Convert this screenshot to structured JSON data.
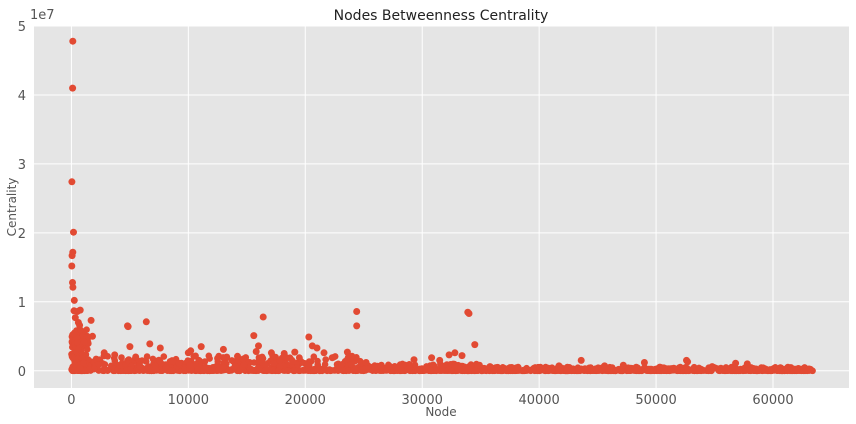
{
  "chart_data": {
    "type": "scatter",
    "title": "Nodes Betweenness Centrality",
    "xlabel": "Node",
    "ylabel": "Centrality",
    "offset_label": "1e7",
    "xlim": [
      -3200,
      66500
    ],
    "ylim": [
      -2500000,
      50000000
    ],
    "x_ticks": [
      0,
      10000,
      20000,
      30000,
      40000,
      50000,
      60000
    ],
    "x_tick_labels": [
      "0",
      "10000",
      "20000",
      "30000",
      "40000",
      "50000",
      "60000"
    ],
    "y_ticks": [
      0,
      10000000,
      20000000,
      30000000,
      40000000,
      50000000
    ],
    "y_tick_labels": [
      "0",
      "1",
      "2",
      "3",
      "4",
      "5"
    ],
    "grid": true,
    "style": "ggplot",
    "colors": {
      "marker": "#E24A33",
      "plot_background": "#E5E5E5",
      "grid": "#FFFFFF"
    },
    "series": [
      {
        "values": [
          [
            120,
            47800000
          ],
          [
            100,
            41000000
          ],
          [
            40,
            27400000
          ],
          [
            180,
            20100000
          ],
          [
            120,
            17200000
          ],
          [
            60,
            16700000
          ],
          [
            30,
            15200000
          ],
          [
            90,
            12800000
          ],
          [
            130,
            12100000
          ],
          [
            250,
            10200000
          ],
          [
            220,
            8700000
          ],
          [
            500,
            8600000
          ],
          [
            750,
            8800000
          ],
          [
            330,
            7700000
          ],
          [
            1680,
            7300000
          ],
          [
            600,
            7000000
          ],
          [
            700,
            6600000
          ],
          [
            1300,
            4800000
          ],
          [
            1100,
            4200000
          ],
          [
            1800,
            5000000
          ],
          [
            4800,
            6500000
          ],
          [
            4850,
            6400000
          ],
          [
            6400,
            7100000
          ],
          [
            16400,
            7800000
          ],
          [
            15600,
            5100000
          ],
          [
            20300,
            4900000
          ],
          [
            24400,
            8600000
          ],
          [
            24400,
            6500000
          ],
          [
            33900,
            8500000
          ],
          [
            34000,
            8300000
          ],
          [
            34500,
            3800000
          ],
          [
            5000,
            3500000
          ],
          [
            6700,
            3900000
          ],
          [
            7600,
            3300000
          ],
          [
            10200,
            2900000
          ],
          [
            10000,
            2600000
          ],
          [
            11100,
            3500000
          ],
          [
            13000,
            3100000
          ],
          [
            16000,
            3600000
          ],
          [
            15800,
            2800000
          ],
          [
            17100,
            2600000
          ],
          [
            18200,
            2500000
          ],
          [
            19100,
            2700000
          ],
          [
            20600,
            3600000
          ],
          [
            21000,
            3300000
          ],
          [
            21600,
            2600000
          ],
          [
            23600,
            2700000
          ],
          [
            24000,
            2100000
          ],
          [
            29300,
            1600000
          ],
          [
            30800,
            1900000
          ],
          [
            31500,
            1500000
          ],
          [
            32300,
            2300000
          ],
          [
            32800,
            2600000
          ],
          [
            33400,
            2200000
          ],
          [
            43600,
            1500000
          ],
          [
            49000,
            1200000
          ],
          [
            52600,
            1500000
          ],
          [
            52700,
            1300000
          ],
          [
            56800,
            1100000
          ],
          [
            57800,
            1000000
          ],
          [
            2800,
            2600000
          ],
          [
            3700,
            2300000
          ],
          [
            5500,
            2000000
          ],
          [
            8700,
            1400000
          ],
          [
            9200,
            1100000
          ],
          [
            12500,
            1800000
          ],
          [
            14200,
            2100000
          ],
          [
            14700,
            1700000
          ],
          [
            22300,
            1900000
          ],
          [
            25200,
            1200000
          ],
          [
            26500,
            600000
          ],
          [
            27800,
            500000
          ],
          [
            35800,
            600000
          ],
          [
            38200,
            500000
          ],
          [
            40100,
            400000
          ],
          [
            41700,
            700000
          ],
          [
            45600,
            700000
          ],
          [
            47200,
            800000
          ],
          [
            50300,
            500000
          ],
          [
            54800,
            600000
          ],
          [
            59100,
            400000
          ],
          [
            61200,
            300000
          ],
          [
            62700,
            400000
          ],
          [
            63200,
            200000
          ]
        ]
      }
    ]
  }
}
